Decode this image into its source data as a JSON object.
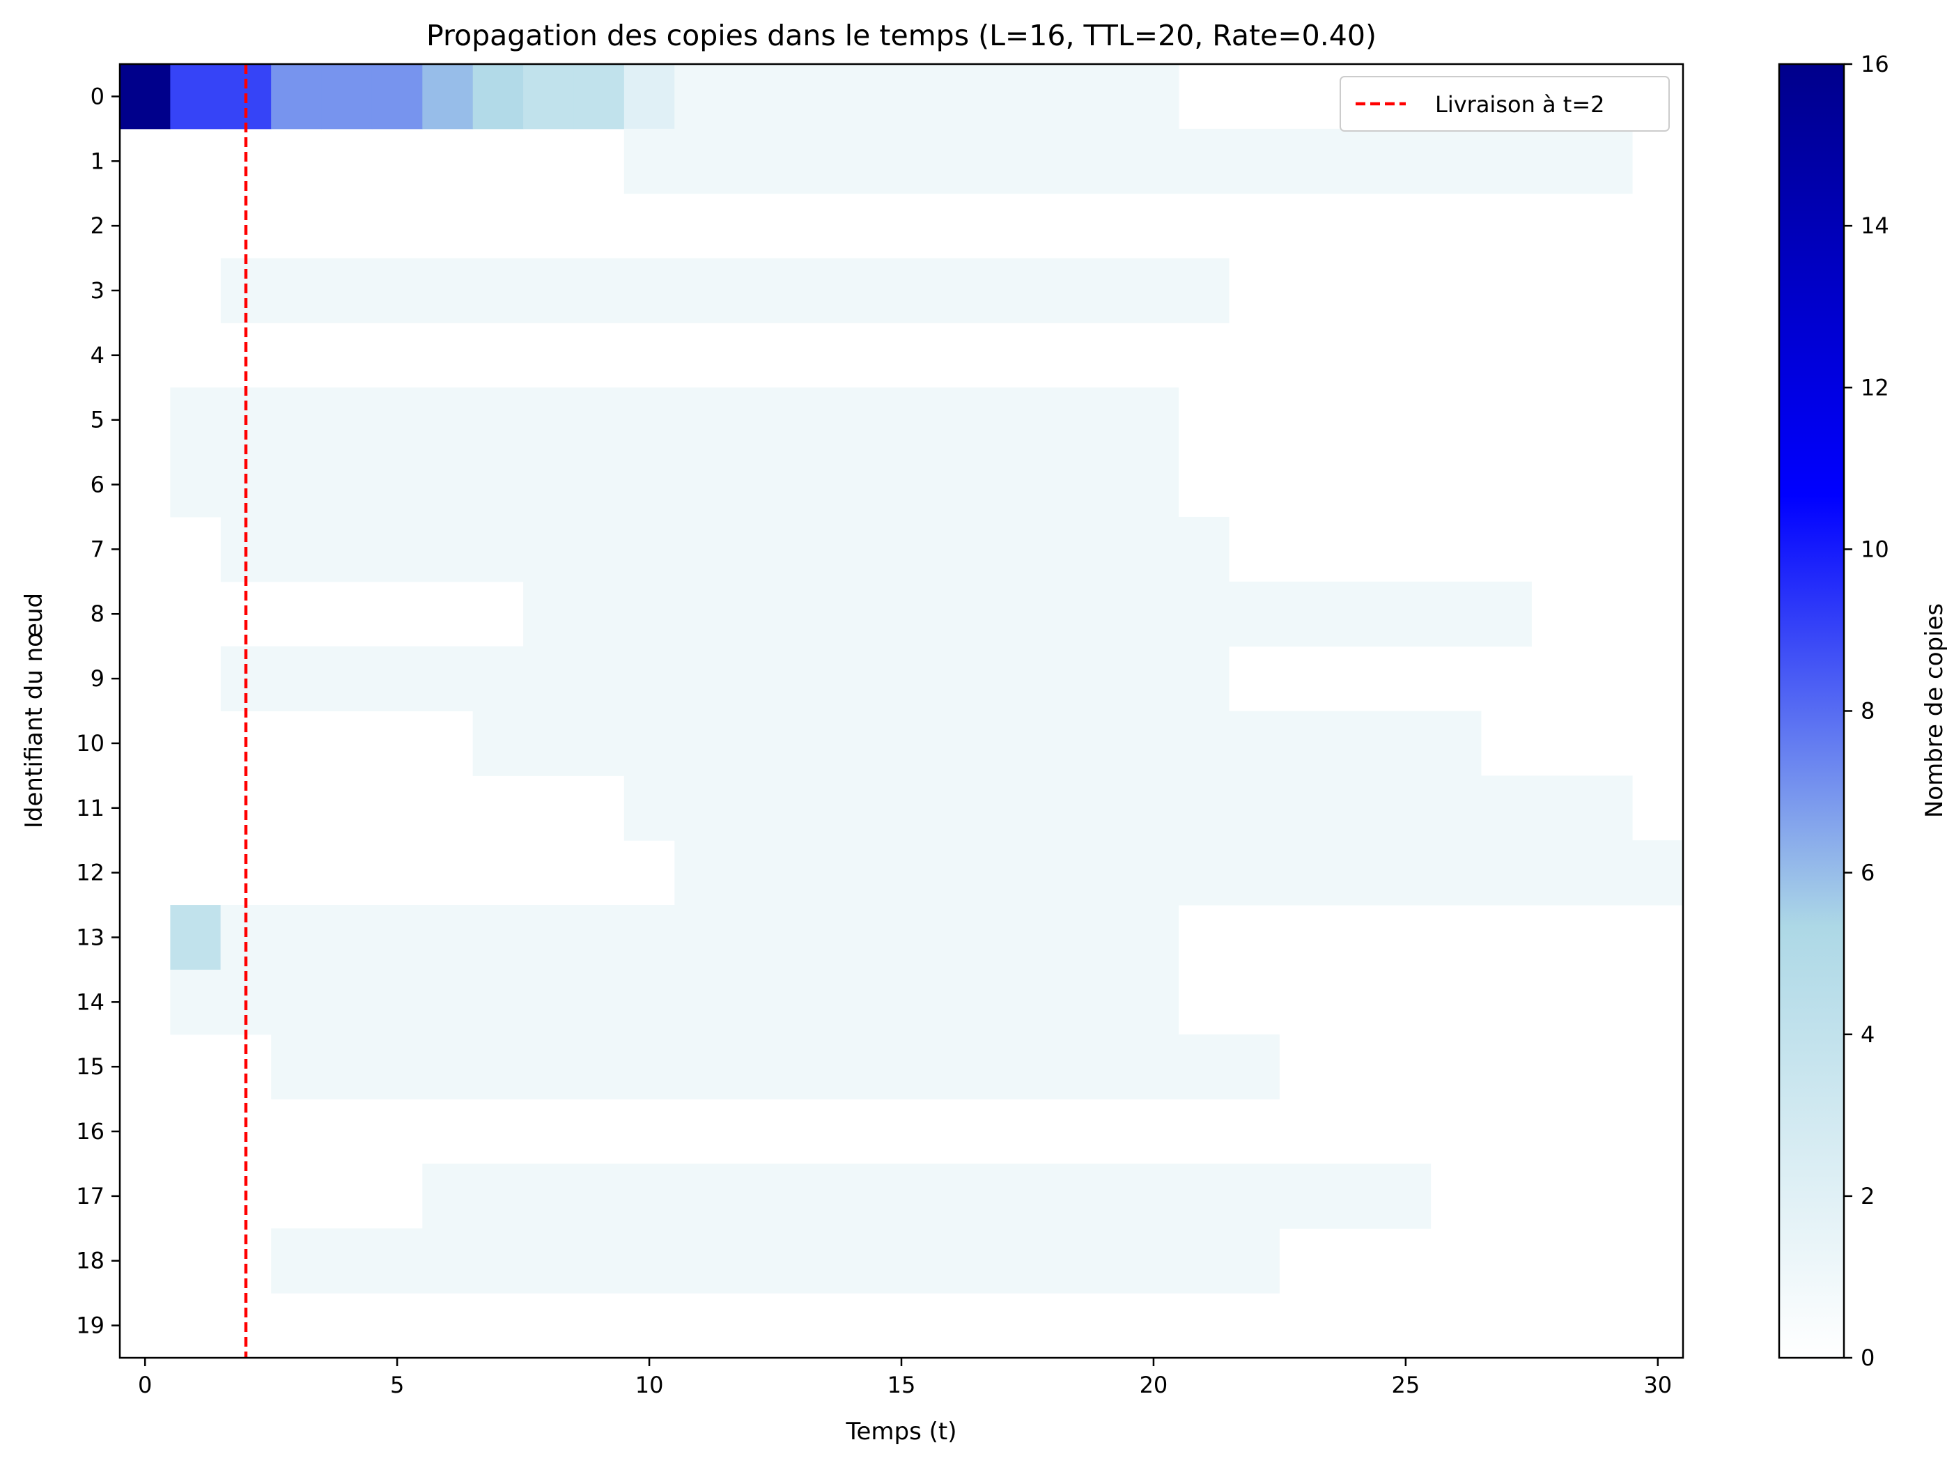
{
  "chart_data": {
    "type": "heatmap",
    "title": "Propagation des copies dans le temps (L=16, TTL=20, Rate=0.40)",
    "xlabel": "Temps (t)",
    "ylabel": "Identifiant du nœud",
    "xlim": [
      -0.5,
      30.5
    ],
    "x_ticks": [
      0,
      5,
      10,
      15,
      20,
      25,
      30
    ],
    "y_ticks": [
      0,
      1,
      2,
      3,
      4,
      5,
      6,
      7,
      8,
      9,
      10,
      11,
      12,
      13,
      14,
      15,
      16,
      17,
      18,
      19
    ],
    "colorbar": {
      "label": "Nombre de copies",
      "min": 0,
      "max": 16,
      "ticks": [
        0,
        2,
        4,
        6,
        8,
        10,
        12,
        14,
        16
      ],
      "colors": [
        [
          0,
          "#ffffff"
        ],
        [
          0.3333,
          "#add8e6"
        ],
        [
          0.6667,
          "#0000ff"
        ],
        [
          1,
          "#00008b"
        ]
      ]
    },
    "marker": {
      "x": 2,
      "color": "#ff0000",
      "legend": "Livraison à t=2"
    },
    "legend_position": "top-right",
    "grid": false,
    "cells": [
      {
        "node": 0,
        "values": [
          16,
          9,
          9,
          7,
          7,
          7,
          6,
          5,
          4,
          4,
          2,
          1,
          1,
          1,
          1,
          1,
          1,
          1,
          1,
          1,
          1,
          0,
          0,
          0,
          0,
          0,
          0,
          0,
          0,
          0,
          0
        ]
      },
      {
        "node": 1,
        "segments": [
          [
            10,
            29,
            1
          ]
        ]
      },
      {
        "node": 2,
        "segments": []
      },
      {
        "node": 3,
        "segments": [
          [
            2,
            21,
            1
          ]
        ]
      },
      {
        "node": 4,
        "segments": []
      },
      {
        "node": 5,
        "segments": [
          [
            1,
            20,
            1
          ]
        ]
      },
      {
        "node": 6,
        "segments": [
          [
            1,
            20,
            1
          ]
        ]
      },
      {
        "node": 7,
        "segments": [
          [
            2,
            21,
            1
          ]
        ]
      },
      {
        "node": 8,
        "segments": [
          [
            8,
            27,
            1
          ]
        ]
      },
      {
        "node": 9,
        "segments": [
          [
            2,
            21,
            1
          ]
        ]
      },
      {
        "node": 10,
        "segments": [
          [
            7,
            26,
            1
          ]
        ]
      },
      {
        "node": 11,
        "segments": [
          [
            10,
            29,
            1
          ]
        ]
      },
      {
        "node": 12,
        "segments": [
          [
            11,
            30,
            1
          ]
        ]
      },
      {
        "node": 13,
        "segments": [
          [
            1,
            1,
            4
          ],
          [
            2,
            20,
            1
          ]
        ]
      },
      {
        "node": 14,
        "segments": [
          [
            1,
            20,
            1
          ]
        ]
      },
      {
        "node": 15,
        "segments": [
          [
            3,
            22,
            1
          ]
        ]
      },
      {
        "node": 16,
        "segments": []
      },
      {
        "node": 17,
        "segments": [
          [
            6,
            25,
            1
          ]
        ]
      },
      {
        "node": 18,
        "segments": [
          [
            3,
            22,
            1
          ]
        ]
      },
      {
        "node": 19,
        "segments": []
      }
    ]
  }
}
